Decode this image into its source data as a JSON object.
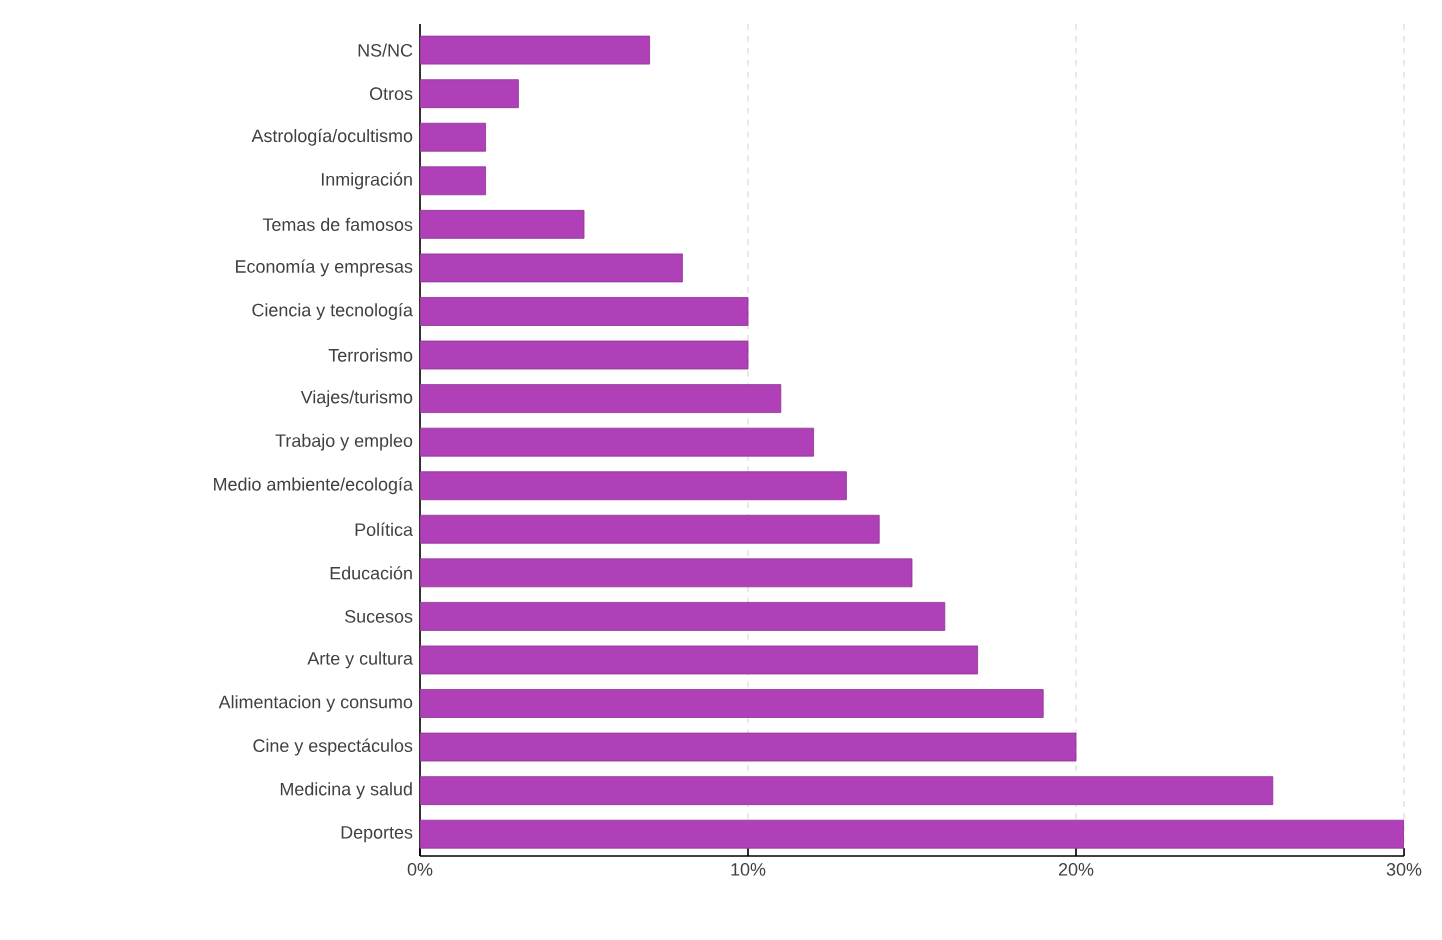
{
  "chart_data": {
    "type": "bar",
    "orientation": "horizontal",
    "categories": [
      "NS/NC",
      "Otros",
      "Astrología/ocultismo",
      "Inmigración",
      "Temas de famosos",
      "Economía y empresas",
      "Ciencia y tecnología",
      "Terrorismo",
      "Viajes/turismo",
      "Trabajo y empleo",
      "Medio ambiente/ecología",
      "Política",
      "Educación",
      "Sucesos",
      "Arte y cultura",
      "Alimentacion y consumo",
      "Cine y espectáculos",
      "Medicina y salud",
      "Deportes"
    ],
    "values": [
      7,
      3,
      2,
      2,
      5,
      8,
      10,
      10,
      11,
      12,
      13,
      14,
      15,
      16,
      17,
      19,
      20,
      26,
      30
    ],
    "color": "#b040b8",
    "xlim": [
      0,
      30
    ],
    "xticks": [
      {
        "value": 0,
        "label": "0%"
      },
      {
        "value": 10,
        "label": "10%"
      },
      {
        "value": 20,
        "label": "20%"
      },
      {
        "value": 30,
        "label": "30%"
      }
    ],
    "grid": "x"
  }
}
